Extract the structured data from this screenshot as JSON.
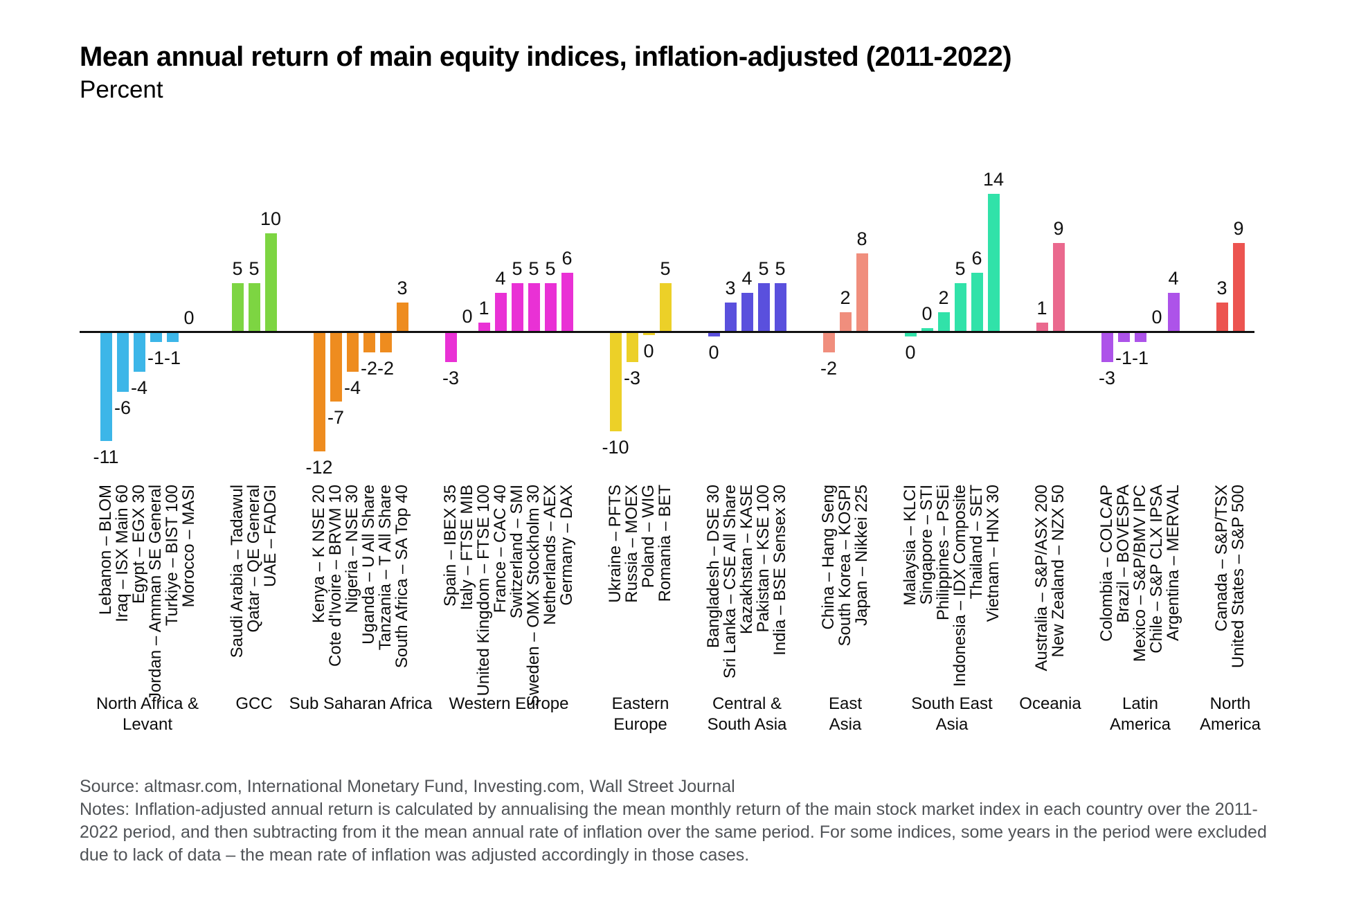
{
  "title": "Mean annual return of main equity indices, inflation-adjusted (2011-2022)",
  "subtitle": "Percent",
  "source": "Source: altmasr.com, International Monetary Fund, Investing.com, Wall Street Journal",
  "notes": "Notes: Inflation-adjusted annual return is calculated by annualising the mean monthly return of the main stock market index in each country over the 2011-2022 period, and then subtracting from it the mean annual rate of inflation over the same period. For some indices, some years in the period were excluded due to lack of data – the mean rate of inflation was adjusted accordingly in those cases.",
  "chart_data": {
    "type": "bar",
    "value_unit": "percent, mean annual inflation-adjusted return 2011-2022",
    "ylim": [
      -12,
      14
    ],
    "grid": false,
    "legend": false,
    "groups": [
      {
        "region_lines": [
          "North Africa &",
          "Levant"
        ],
        "color": "#3cb6e8",
        "bars": [
          {
            "label": "Lebanon – BLOM",
            "value": -11
          },
          {
            "label": "Iraq – ISX Main 60",
            "value": -6
          },
          {
            "label": "Egypt – EGX 30",
            "value": -4
          },
          {
            "label": "Jordan – Amman SE General",
            "value": -1
          },
          {
            "label": "Turkiye – BIST 100",
            "value": -1
          },
          {
            "label": "Morocco – MASI",
            "value": 0,
            "bar": 0
          }
        ]
      },
      {
        "region_lines": [
          "GCC"
        ],
        "color": "#7dd542",
        "bars": [
          {
            "label": "Saudi Arabia – Tadawul",
            "value": 5
          },
          {
            "label": "Qatar – QE General",
            "value": 5
          },
          {
            "label": "UAE – FADGI",
            "value": 10
          }
        ]
      },
      {
        "region_lines": [
          "Sub Saharan Africa"
        ],
        "color": "#ee8c1f",
        "bars": [
          {
            "label": "Kenya – K NSE 20",
            "value": -12
          },
          {
            "label": "Cote d'Ivoire – BRVM 10",
            "value": -7
          },
          {
            "label": "Nigeria – NSE 30",
            "value": -4
          },
          {
            "label": "Uganda – U All Share",
            "value": -2
          },
          {
            "label": "Tanzania – T All Share",
            "value": -2
          },
          {
            "label": "South Africa – SA Top 40",
            "value": 3
          }
        ]
      },
      {
        "region_lines": [
          "Western Europe"
        ],
        "color": "#e931d5",
        "bars": [
          {
            "label": "Spain – IBEX 35",
            "value": -3
          },
          {
            "label": "Italy – FTSE MIB",
            "value": 0,
            "bar": 0.15
          },
          {
            "label": "United Kingdom – FTSE 100",
            "value": 1
          },
          {
            "label": "France – CAC 40",
            "value": 4
          },
          {
            "label": "Switzerland – SMI",
            "value": 5
          },
          {
            "label": "Sweden – OMX Stockholm 30",
            "value": 5
          },
          {
            "label": "Netherlands – AEX",
            "value": 5
          },
          {
            "label": "Germany – DAX",
            "value": 6
          }
        ]
      },
      {
        "region_lines": [
          "Eastern",
          "Europe"
        ],
        "color": "#ecd028",
        "bars": [
          {
            "label": "Ukraine – PFTS",
            "value": -10
          },
          {
            "label": "Russia – MOEX",
            "value": -3
          },
          {
            "label": "Poland – WIG",
            "value": 0,
            "bar": -0.25
          },
          {
            "label": "Romania – BET",
            "value": 5
          }
        ]
      },
      {
        "region_lines": [
          "Central &",
          "South Asia"
        ],
        "color": "#5a50dd",
        "bars": [
          {
            "label": "Bangladesh – DSE 30",
            "value": 0,
            "bar": -0.45
          },
          {
            "label": "Sri Lanka – CSE All Share",
            "value": 3
          },
          {
            "label": "Kazakhstan – KASE",
            "value": 4
          },
          {
            "label": "Pakistan – KSE 100",
            "value": 5
          },
          {
            "label": "India – BSE Sensex 30",
            "value": 5
          }
        ]
      },
      {
        "region_lines": [
          "East",
          "Asia"
        ],
        "color": "#f08e7d",
        "bars": [
          {
            "label": "China – Hang Seng",
            "value": -2
          },
          {
            "label": "South Korea – KOSPI",
            "value": 2
          },
          {
            "label": "Japan – Nikkei 225",
            "value": 8
          }
        ]
      },
      {
        "region_lines": [
          "South East",
          "Asia"
        ],
        "color": "#31e2a9",
        "bars": [
          {
            "label": "Malaysia – KLCI",
            "value": 0,
            "bar": -0.45
          },
          {
            "label": "Singapore – STI",
            "value": 0,
            "bar": 0.45
          },
          {
            "label": "Philippines – PSEi",
            "value": 2
          },
          {
            "label": "Indonesia – IDX Composite",
            "value": 5
          },
          {
            "label": "Thailand – SET",
            "value": 6
          },
          {
            "label": "Vietnam – HNX 30",
            "value": 14
          }
        ]
      },
      {
        "region_lines": [
          "Oceania"
        ],
        "color": "#ea698e",
        "bars": [
          {
            "label": "Australia – S&P/ASX 200",
            "value": 1
          },
          {
            "label": "New Zealand – NZX 50",
            "value": 9
          }
        ]
      },
      {
        "region_lines": [
          "Latin",
          "America"
        ],
        "color": "#ad53e9",
        "bars": [
          {
            "label": "Colombia – COLCAP",
            "value": -3
          },
          {
            "label": "Brazil – BOVESPA",
            "value": -1
          },
          {
            "label": "Mexico – S&P/BMV IPC",
            "value": -1
          },
          {
            "label": "Chile – S&P CLX IPSA",
            "value": 0,
            "bar": 0.1
          },
          {
            "label": "Argentina – MERVAL",
            "value": 4
          }
        ]
      },
      {
        "region_lines": [
          "North",
          "America"
        ],
        "color": "#ec5450",
        "bars": [
          {
            "label": "Canada – S&P/TSX",
            "value": 3
          },
          {
            "label": "United States – S&P 500",
            "value": 9
          }
        ]
      }
    ]
  }
}
